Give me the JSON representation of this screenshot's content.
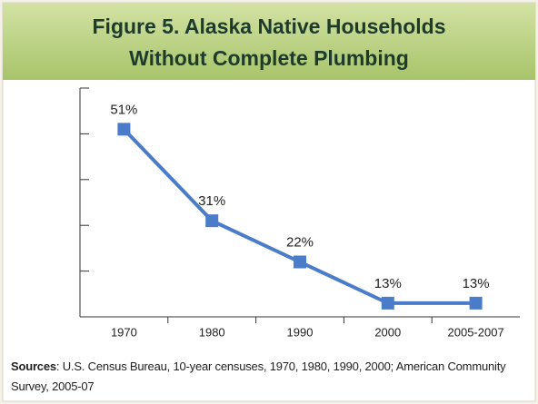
{
  "chart_data": {
    "type": "line",
    "title": [
      "Figure 5. Alaska Native Households",
      "Without Complete Plumbing"
    ],
    "categories": [
      "1970",
      "1980",
      "1990",
      "2000",
      "2005-2007"
    ],
    "values": [
      51,
      31,
      22,
      13,
      13
    ],
    "value_labels": [
      "51%",
      "31%",
      "22%",
      "13%",
      "13%"
    ],
    "color": "#4a7cc9",
    "ylim": [
      10,
      60
    ],
    "yticks": [
      10,
      20,
      30,
      40,
      50,
      60
    ],
    "source": {
      "label": "Sources",
      "text": ": U.S. Census Bureau, 10-year censuses, 1970, 1980, 1990, 2000; American Community Survey, 2005-07"
    }
  }
}
